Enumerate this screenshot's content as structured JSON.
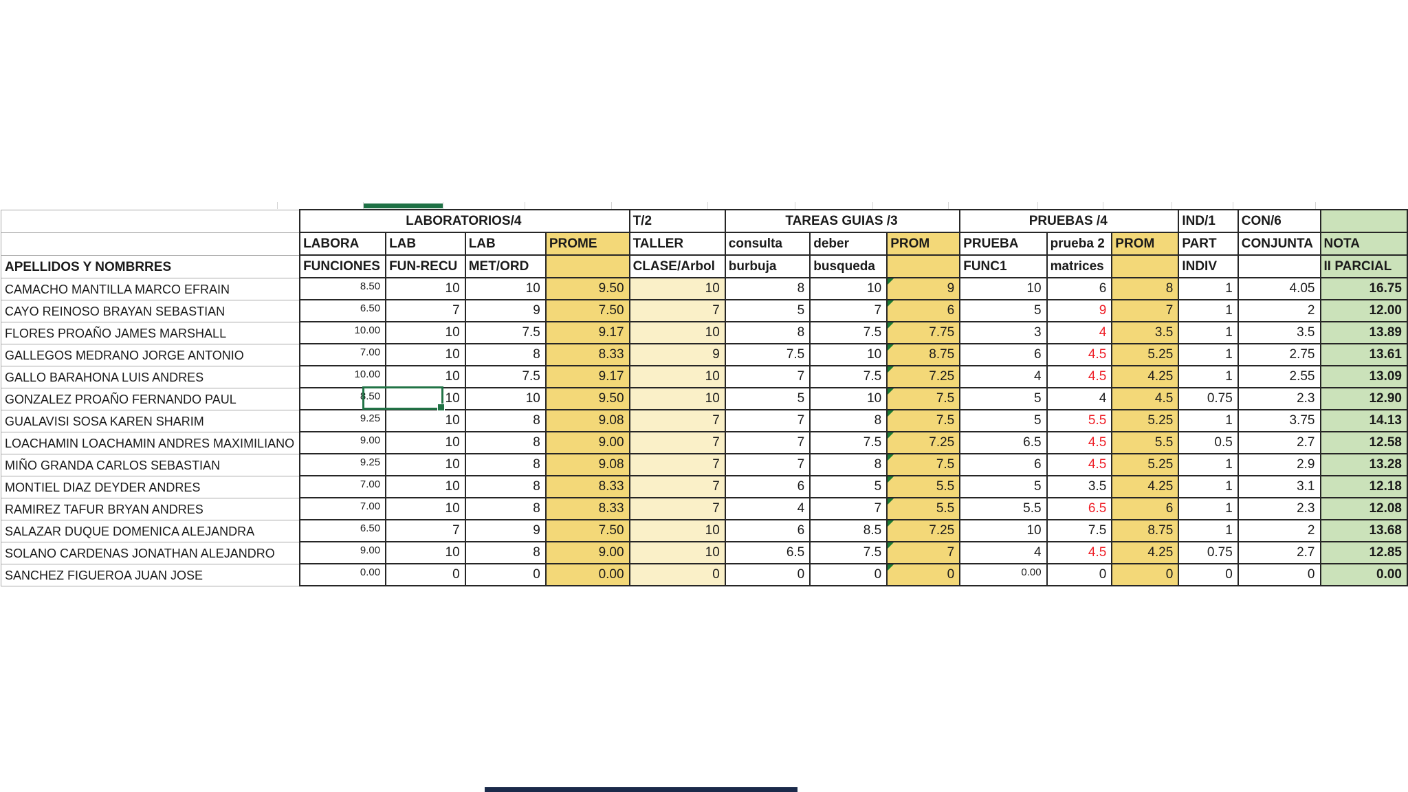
{
  "table": {
    "corner_label": "APELLIDOS Y NOMBRRES",
    "groups": [
      {
        "label": "LABORATORIOS/4",
        "span": 4,
        "align": "center",
        "green": false
      },
      {
        "label": "T/2",
        "span": 1,
        "align": "left",
        "green": false
      },
      {
        "label": "TAREAS GUIAS /3",
        "span": 3,
        "align": "center",
        "green": false
      },
      {
        "label": "PRUEBAS /4",
        "span": 3,
        "align": "center",
        "green": false
      },
      {
        "label": "IND/1",
        "span": 1,
        "align": "left",
        "green": false
      },
      {
        "label": "CON/6",
        "span": 1,
        "align": "left",
        "green": false
      },
      {
        "label": "",
        "span": 1,
        "align": "left",
        "green": true
      }
    ],
    "col_headers_row2": [
      "LABORA",
      "LAB",
      "LAB",
      "PROME",
      "TALLER",
      "consulta",
      "deber",
      "PROM",
      "PRUEBA",
      "prueba 2",
      "PROM",
      "PART",
      "CONJUNTA",
      "NOTA"
    ],
    "col_headers_row3": [
      "FUNCIONES",
      "FUN-RECU",
      "MET/ORD",
      "",
      "CLASE/Arbol",
      "burbuja",
      "busqueda",
      "",
      "FUNC1",
      "matrices",
      "",
      "INDIV",
      "",
      "II PARCIAL"
    ],
    "rows": [
      {
        "name": "CAMACHO MANTILLA MARCO EFRAIN",
        "values": [
          "8.50",
          "10",
          "10",
          "9.50",
          "10",
          "8",
          "10",
          "9",
          "10",
          "6",
          "8",
          "1",
          "4.05",
          "16.75"
        ],
        "matrices_red": false
      },
      {
        "name": "CAYO REINOSO BRAYAN SEBASTIAN",
        "values": [
          "6.50",
          "7",
          "9",
          "7.50",
          "7",
          "5",
          "7",
          "6",
          "5",
          "9",
          "7",
          "1",
          "2",
          "12.00"
        ],
        "matrices_red": true
      },
      {
        "name": "FLORES PROAÑO JAMES MARSHALL",
        "values": [
          "10.00",
          "10",
          "7.5",
          "9.17",
          "10",
          "8",
          "7.5",
          "7.75",
          "3",
          "4",
          "3.5",
          "1",
          "3.5",
          "13.89"
        ],
        "matrices_red": true
      },
      {
        "name": "GALLEGOS MEDRANO JORGE ANTONIO",
        "values": [
          "7.00",
          "10",
          "8",
          "8.33",
          "9",
          "7.5",
          "10",
          "8.75",
          "6",
          "4.5",
          "5.25",
          "1",
          "2.75",
          "13.61"
        ],
        "matrices_red": true
      },
      {
        "name": "GALLO BARAHONA LUIS ANDRES",
        "values": [
          "10.00",
          "10",
          "7.5",
          "9.17",
          "10",
          "7",
          "7.5",
          "7.25",
          "4",
          "4.5",
          "4.25",
          "1",
          "2.55",
          "13.09"
        ],
        "matrices_red": true
      },
      {
        "name": "GONZALEZ PROAÑO FERNANDO PAUL",
        "values": [
          "8.50",
          "10",
          "10",
          "9.50",
          "10",
          "5",
          "10",
          "7.5",
          "5",
          "4",
          "4.5",
          "0.75",
          "2.3",
          "12.90"
        ],
        "matrices_red": false,
        "selected_col": 1
      },
      {
        "name": "GUALAVISI SOSA KAREN SHARIM",
        "values": [
          "9.25",
          "10",
          "8",
          "9.08",
          "7",
          "7",
          "8",
          "7.5",
          "5",
          "5.5",
          "5.25",
          "1",
          "3.75",
          "14.13"
        ],
        "matrices_red": true
      },
      {
        "name": "LOACHAMIN LOACHAMIN ANDRES MAXIMILIANO",
        "values": [
          "9.00",
          "10",
          "8",
          "9.00",
          "7",
          "7",
          "7.5",
          "7.25",
          "6.5",
          "4.5",
          "5.5",
          "0.5",
          "2.7",
          "12.58"
        ],
        "matrices_red": true
      },
      {
        "name": "MIÑO GRANDA CARLOS SEBASTIAN",
        "values": [
          "9.25",
          "10",
          "8",
          "9.08",
          "7",
          "7",
          "8",
          "7.5",
          "6",
          "4.5",
          "5.25",
          "1",
          "2.9",
          "13.28"
        ],
        "matrices_red": true
      },
      {
        "name": "MONTIEL DIAZ DEYDER ANDRES",
        "values": [
          "7.00",
          "10",
          "8",
          "8.33",
          "7",
          "6",
          "5",
          "5.5",
          "5",
          "3.5",
          "4.25",
          "1",
          "3.1",
          "12.18"
        ],
        "matrices_red": false
      },
      {
        "name": "RAMIREZ TAFUR BRYAN ANDRES",
        "values": [
          "7.00",
          "10",
          "8",
          "8.33",
          "7",
          "4",
          "7",
          "5.5",
          "5.5",
          "6.5",
          "6",
          "1",
          "2.3",
          "12.08"
        ],
        "matrices_red": true
      },
      {
        "name": "SALAZAR DUQUE DOMENICA ALEJANDRA",
        "values": [
          "6.50",
          "7",
          "9",
          "7.50",
          "10",
          "6",
          "8.5",
          "7.25",
          "10",
          "7.5",
          "8.75",
          "1",
          "2",
          "13.68"
        ],
        "matrices_red": false
      },
      {
        "name": "SOLANO CARDENAS JONATHAN ALEJANDRO",
        "values": [
          "9.00",
          "10",
          "8",
          "9.00",
          "10",
          "6.5",
          "7.5",
          "7",
          "4",
          "4.5",
          "4.25",
          "0.75",
          "2.7",
          "12.85"
        ],
        "matrices_red": true
      },
      {
        "name": "SANCHEZ FIGUEROA JUAN JOSE",
        "values": [
          "0.00",
          "0",
          "0",
          "0.00",
          "0",
          "0",
          "0",
          "0",
          "0.00",
          "0",
          "0",
          "0",
          "0",
          "0.00"
        ],
        "matrices_red": false,
        "small_prueba": true
      }
    ],
    "colors": {
      "header_fill_yellow": "#F3D878",
      "taller_fill_cream": "#FAF0C8",
      "nota_fill_green": "#CBE2BA",
      "selection_green": "#217346",
      "error_triangle_green": "#1E7B34",
      "red_value_text": "#EE1C25"
    }
  }
}
